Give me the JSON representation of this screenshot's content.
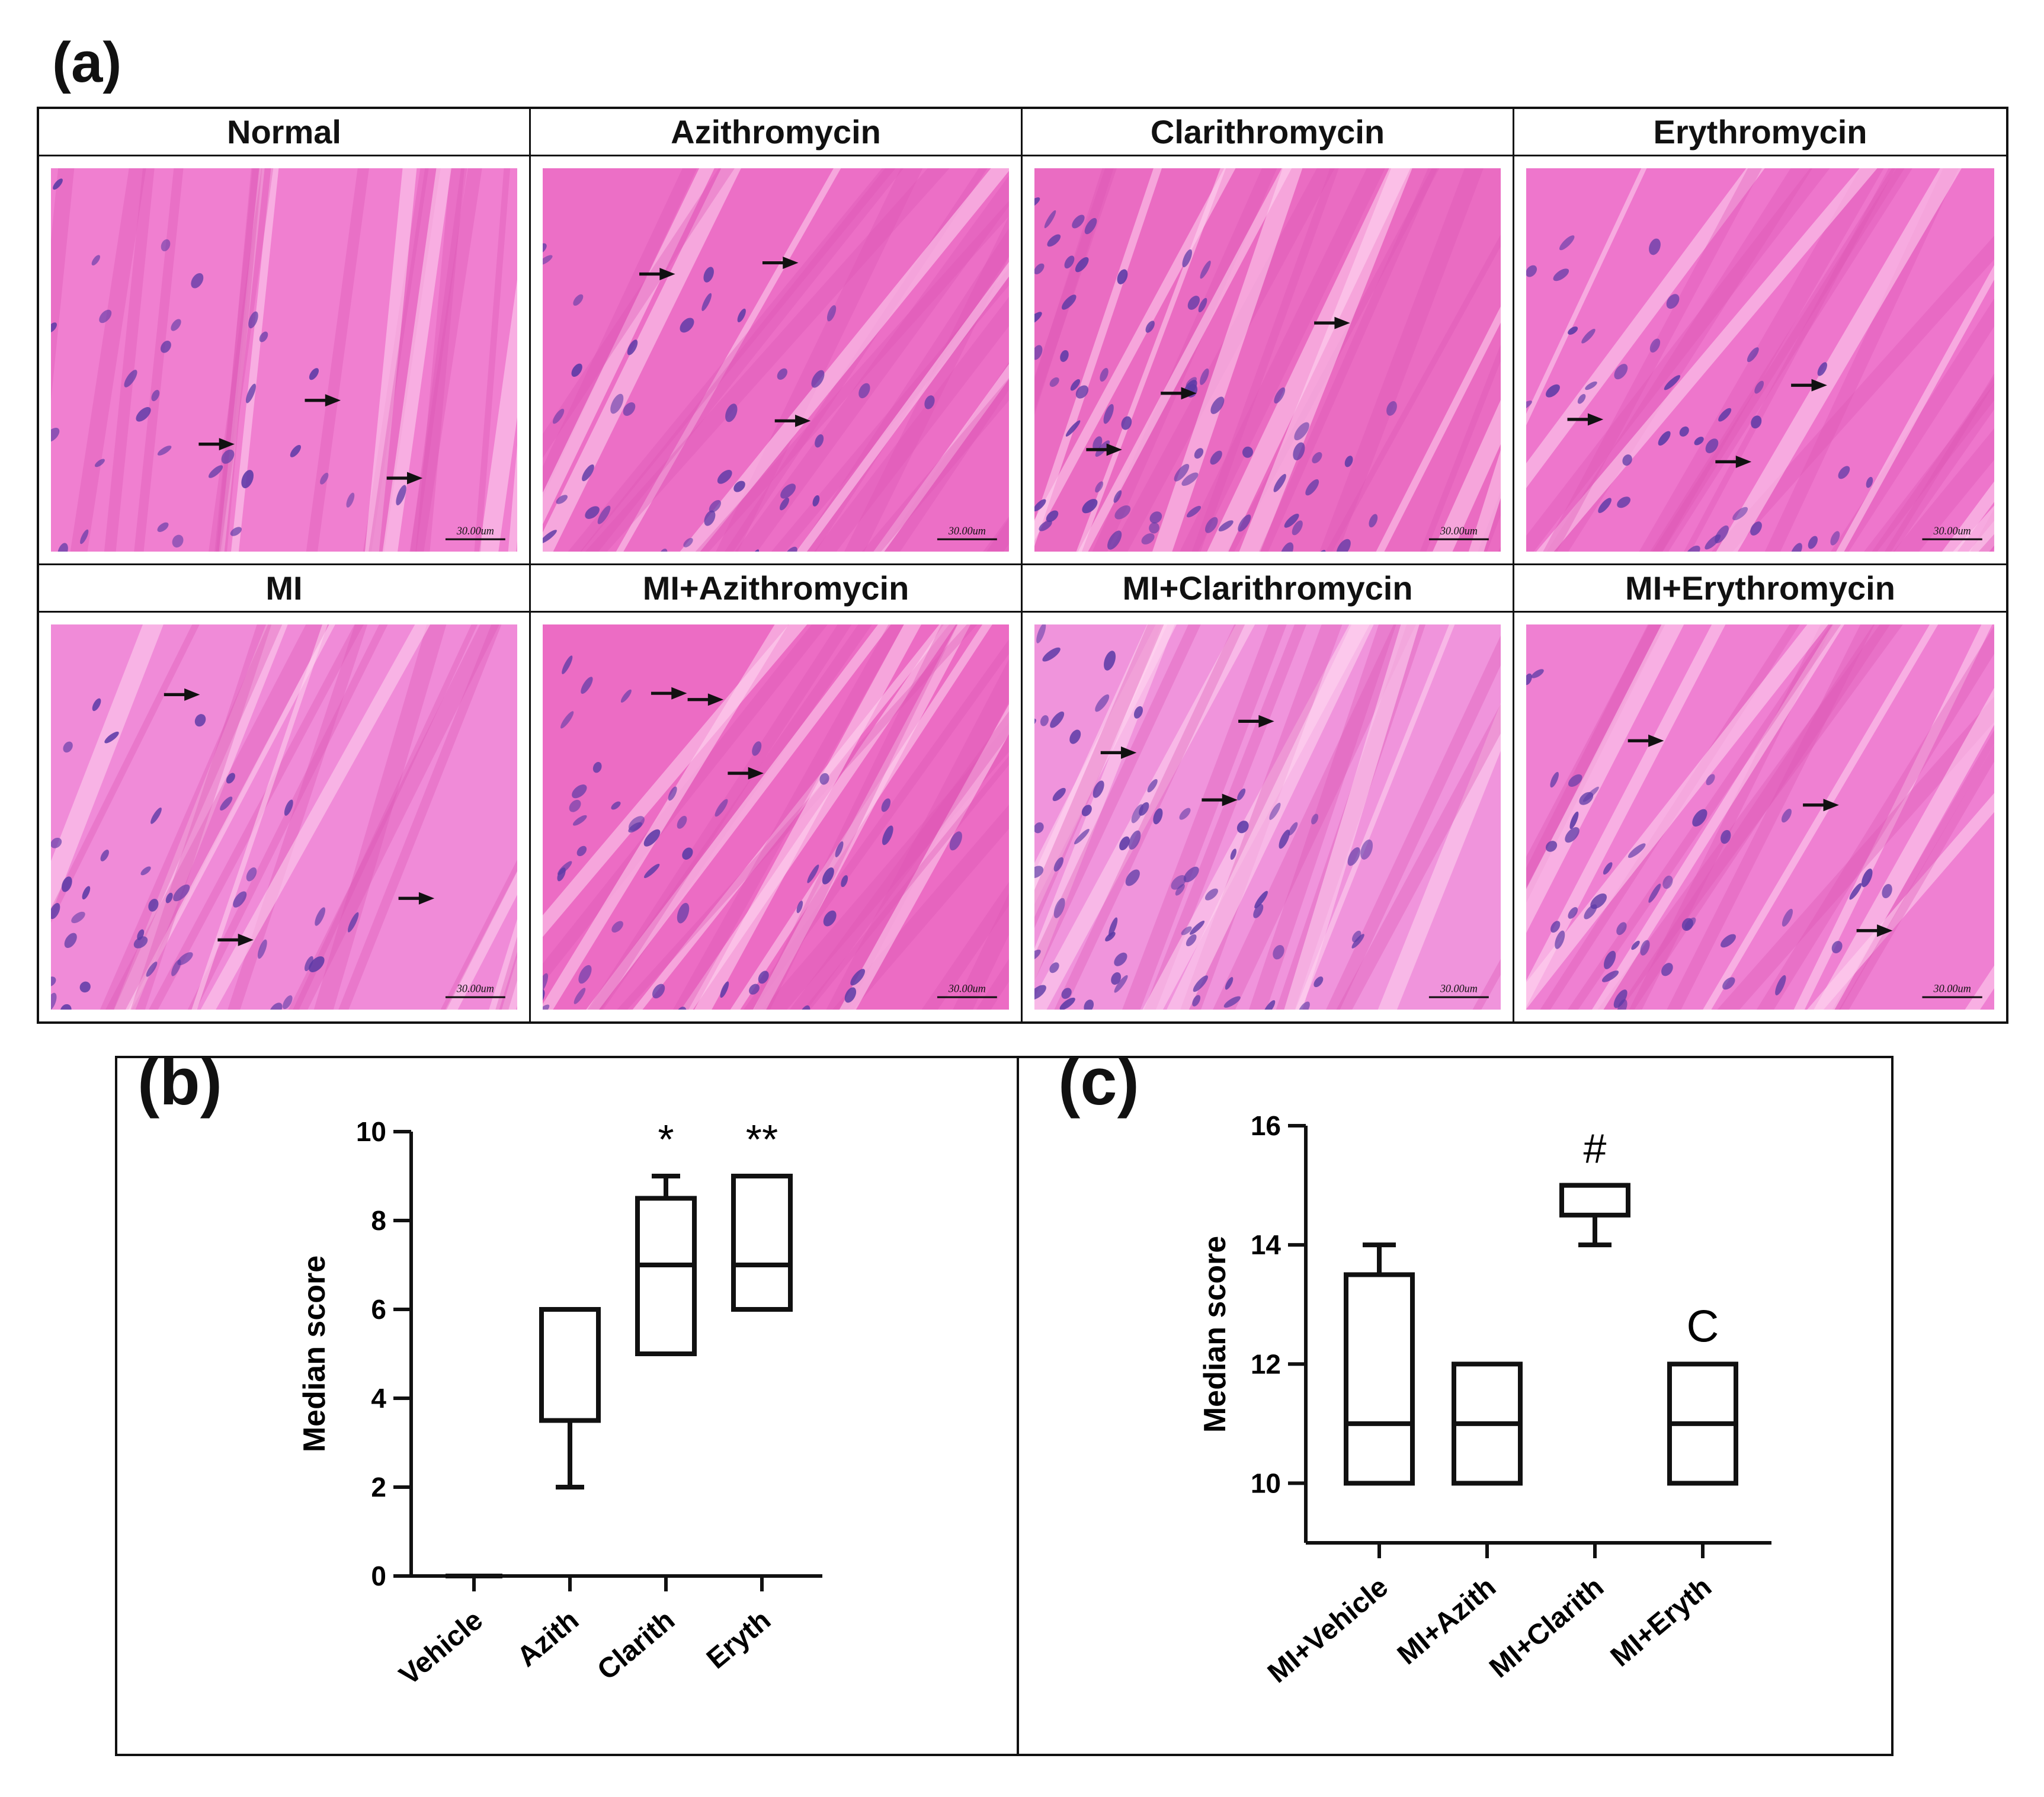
{
  "panels": {
    "a": {
      "label": "(a)"
    },
    "b": {
      "label": "(b)"
    },
    "c": {
      "label": "(c)"
    }
  },
  "micrographs": [
    {
      "title": "Normal",
      "scale_bar": "30.00um",
      "hue": "#f07fd0"
    },
    {
      "title": "Azithromycin",
      "scale_bar": "30.00um",
      "hue": "#ec6fc6"
    },
    {
      "title": "Clarithromycin",
      "scale_bar": "30.00um",
      "hue": "#ea6cc2"
    },
    {
      "title": "Erythromycin",
      "scale_bar": "30.00um",
      "hue": "#ee76cc"
    },
    {
      "title": "MI",
      "scale_bar": "30.00um",
      "hue": "#f08bd8"
    },
    {
      "title": "MI+Azithromycin",
      "scale_bar": "30.00um",
      "hue": "#ec6cc4"
    },
    {
      "title": "MI+Clarithromycin",
      "scale_bar": "30.00um",
      "hue": "#f094dc"
    },
    {
      "title": "MI+Erythromycin",
      "scale_bar": "30.00um",
      "hue": "#ef80d2"
    }
  ],
  "chart_data": [
    {
      "type": "box",
      "panel": "b",
      "ylabel": "Median score",
      "ylim": [
        0,
        10
      ],
      "yticks": [
        "0",
        "2",
        "4",
        "6",
        "8",
        "10"
      ],
      "categories": [
        "Vehicle",
        "Azith",
        "Clarith",
        "Eryth"
      ],
      "boxes": [
        {
          "min": 0,
          "q1": 0,
          "median": 0,
          "q3": 0,
          "max": 0,
          "annotation": ""
        },
        {
          "min": 2,
          "q1": 3.5,
          "median": 6,
          "q3": 6,
          "max": 6,
          "annotation": ""
        },
        {
          "min": 5,
          "q1": 5,
          "median": 7,
          "q3": 8.5,
          "max": 9,
          "annotation": "*"
        },
        {
          "min": 6,
          "q1": 6,
          "median": 7,
          "q3": 9,
          "max": 9,
          "annotation": "**"
        }
      ]
    },
    {
      "type": "box",
      "panel": "c",
      "ylabel": "Median score",
      "ylim": [
        9,
        16
      ],
      "yticks": [
        "10",
        "12",
        "14",
        "16"
      ],
      "categories": [
        "MI+Vehicle",
        "MI+Azith",
        "MI+Clarith",
        "MI+Eryth"
      ],
      "boxes": [
        {
          "min": 10,
          "q1": 10,
          "median": 11,
          "q3": 13.5,
          "max": 14,
          "annotation": ""
        },
        {
          "min": 10,
          "q1": 10,
          "median": 11,
          "q3": 12,
          "max": 12,
          "annotation": ""
        },
        {
          "min": 14,
          "q1": 14.5,
          "median": 15,
          "q3": 15,
          "max": 15,
          "annotation": "#"
        },
        {
          "min": 10,
          "q1": 10,
          "median": 11,
          "q3": 12,
          "max": 12,
          "annotation": "C"
        }
      ]
    }
  ]
}
